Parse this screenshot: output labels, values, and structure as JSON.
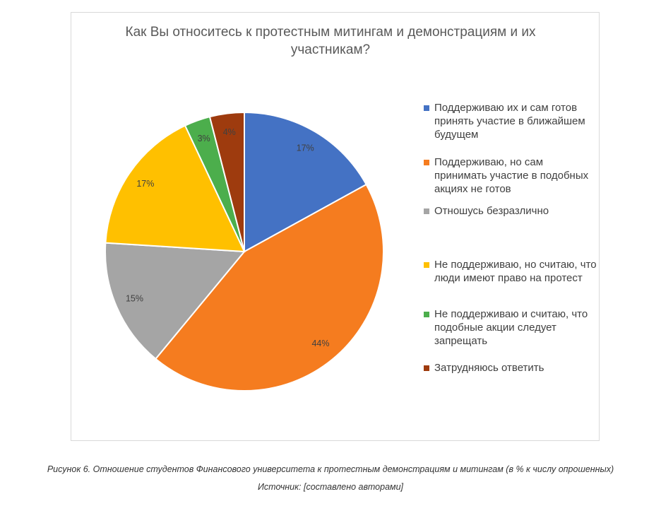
{
  "chart_data": {
    "type": "pie",
    "title": "Как Вы относитесь к протестным митингам и демонстрациям и их участникам?",
    "categories": [
      "Поддерживаю их и сам готов принять участие в ближайшем будущем",
      "Поддерживаю, но сам принимать участие в подобных акциях не готов",
      "Отношусь безразлично",
      "Не поддерживаю, но считаю, что люди имеют право на протест",
      "Не поддерживаю и считаю, что подобные акции следует запрещать",
      "Затрудняюсь ответить"
    ],
    "values": [
      17,
      44,
      15,
      17,
      3,
      4
    ],
    "value_labels": [
      "17%",
      "44%",
      "15%",
      "17%",
      "3%",
      "4%"
    ],
    "colors": [
      "#4472c4",
      "#f57c1f",
      "#a5a5a5",
      "#ffc000",
      "#4cae4c",
      "#9e3b0e"
    ],
    "legend": "right"
  },
  "caption": "Рисунок 6. Отношение студентов Финансового университета к протестным демонстрациям и митингам (в % к числу опрошенных)",
  "source": "Источник: [составлено авторами]"
}
